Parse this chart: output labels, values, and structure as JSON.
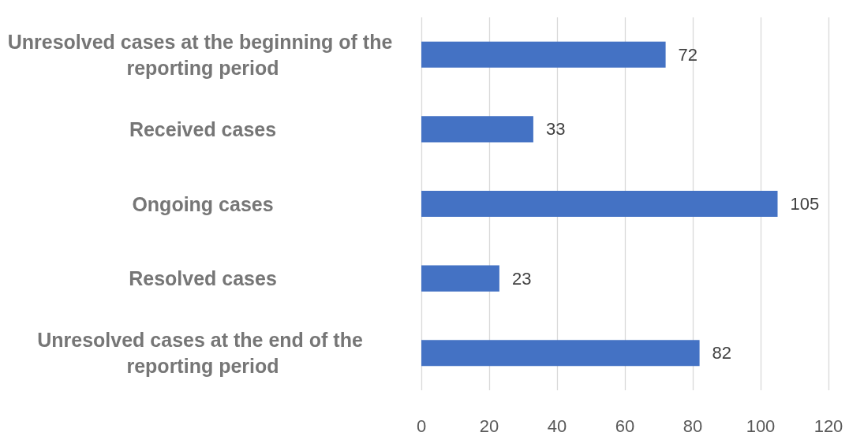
{
  "chart_data": {
    "type": "bar",
    "orientation": "horizontal",
    "categories": [
      "Unresolved cases at the beginning of the reporting period",
      "Received cases",
      "Ongoing cases",
      "Resolved cases",
      "Unresolved cases at the end of the reporting period"
    ],
    "values": [
      72,
      33,
      105,
      23,
      82
    ],
    "color": "#4472c4",
    "xlim": [
      0,
      120
    ],
    "xticks": [
      0,
      20,
      40,
      60,
      80,
      100,
      120
    ],
    "grid": "x",
    "data_labels": true
  }
}
